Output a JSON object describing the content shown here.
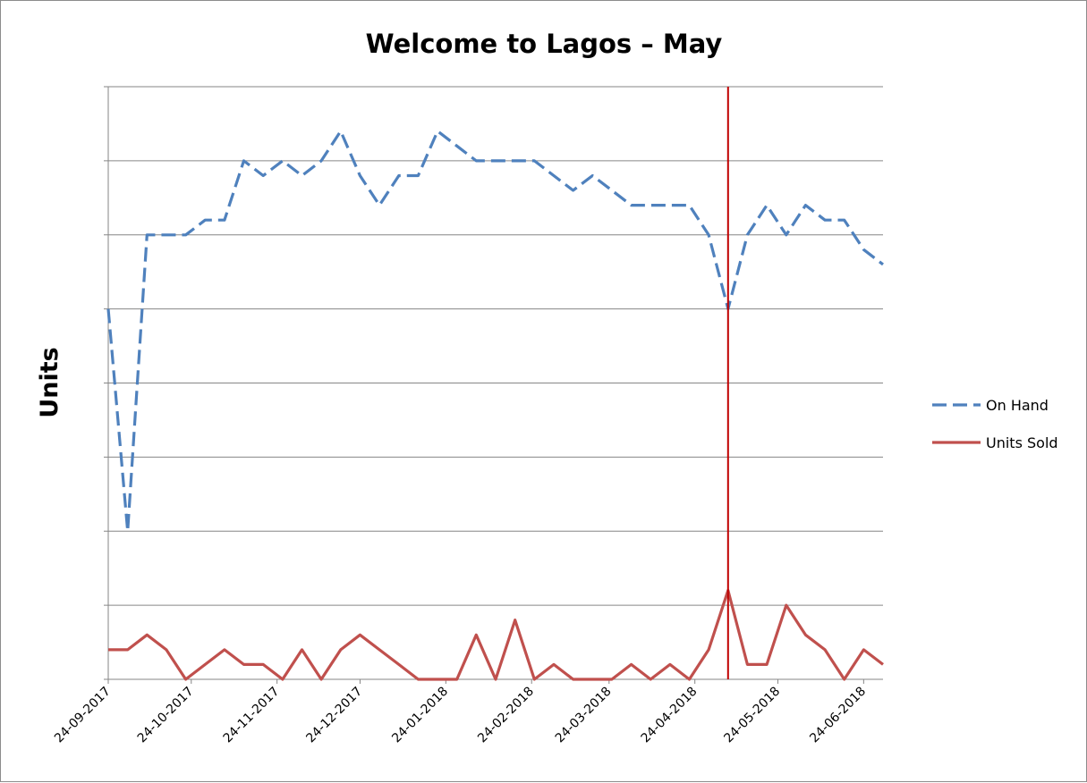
{
  "chart_data": {
    "type": "line",
    "title": "Welcome to Lagos – May",
    "xlabel": "",
    "ylabel": "Units",
    "x_tick_labels": [
      "24-09-2017",
      "24-10-2017",
      "24-11-2017",
      "24-12-2017",
      "24-01-2018",
      "24-02-2018",
      "24-03-2018",
      "24-04-2018",
      "24-05-2018",
      "24-06-2018"
    ],
    "y_tick_labels_visible": false,
    "ylim": [
      0,
      8
    ],
    "grid": "horizontal",
    "legend_position": "right",
    "x_start": "2017-09-24",
    "x_step_days": 7,
    "series": [
      {
        "name": "On Hand",
        "color": "#4f81bd",
        "dash": "dashed",
        "values": [
          5,
          2,
          6,
          6,
          6,
          6.2,
          6.2,
          7,
          6.8,
          7,
          6.8,
          7,
          7.4,
          6.8,
          6.4,
          6.8,
          6.8,
          7.4,
          7.2,
          7,
          7,
          7,
          7,
          6.8,
          6.6,
          6.8,
          6.6,
          6.4,
          6.4,
          6.4,
          6.4,
          6,
          5,
          6,
          6.4,
          6,
          6.4,
          6.2,
          6.2,
          5.8,
          5.6
        ]
      },
      {
        "name": "Units Sold",
        "color": "#c0504d",
        "dash": "solid",
        "values": [
          0.4,
          0.4,
          0.6,
          0.4,
          0,
          0.2,
          0.4,
          0.2,
          0.2,
          0,
          0.4,
          0,
          0.4,
          0.6,
          0.4,
          0.2,
          0,
          0,
          0,
          0.6,
          0,
          0.8,
          0,
          0.2,
          0,
          0,
          0,
          0.2,
          0,
          0.2,
          0,
          0.4,
          1.2,
          0.2,
          0.2,
          1,
          0.6,
          0.4,
          0,
          0.4,
          0.2
        ]
      }
    ],
    "marker_line": {
      "x": "2018-05-06",
      "color": "#c00000"
    }
  }
}
